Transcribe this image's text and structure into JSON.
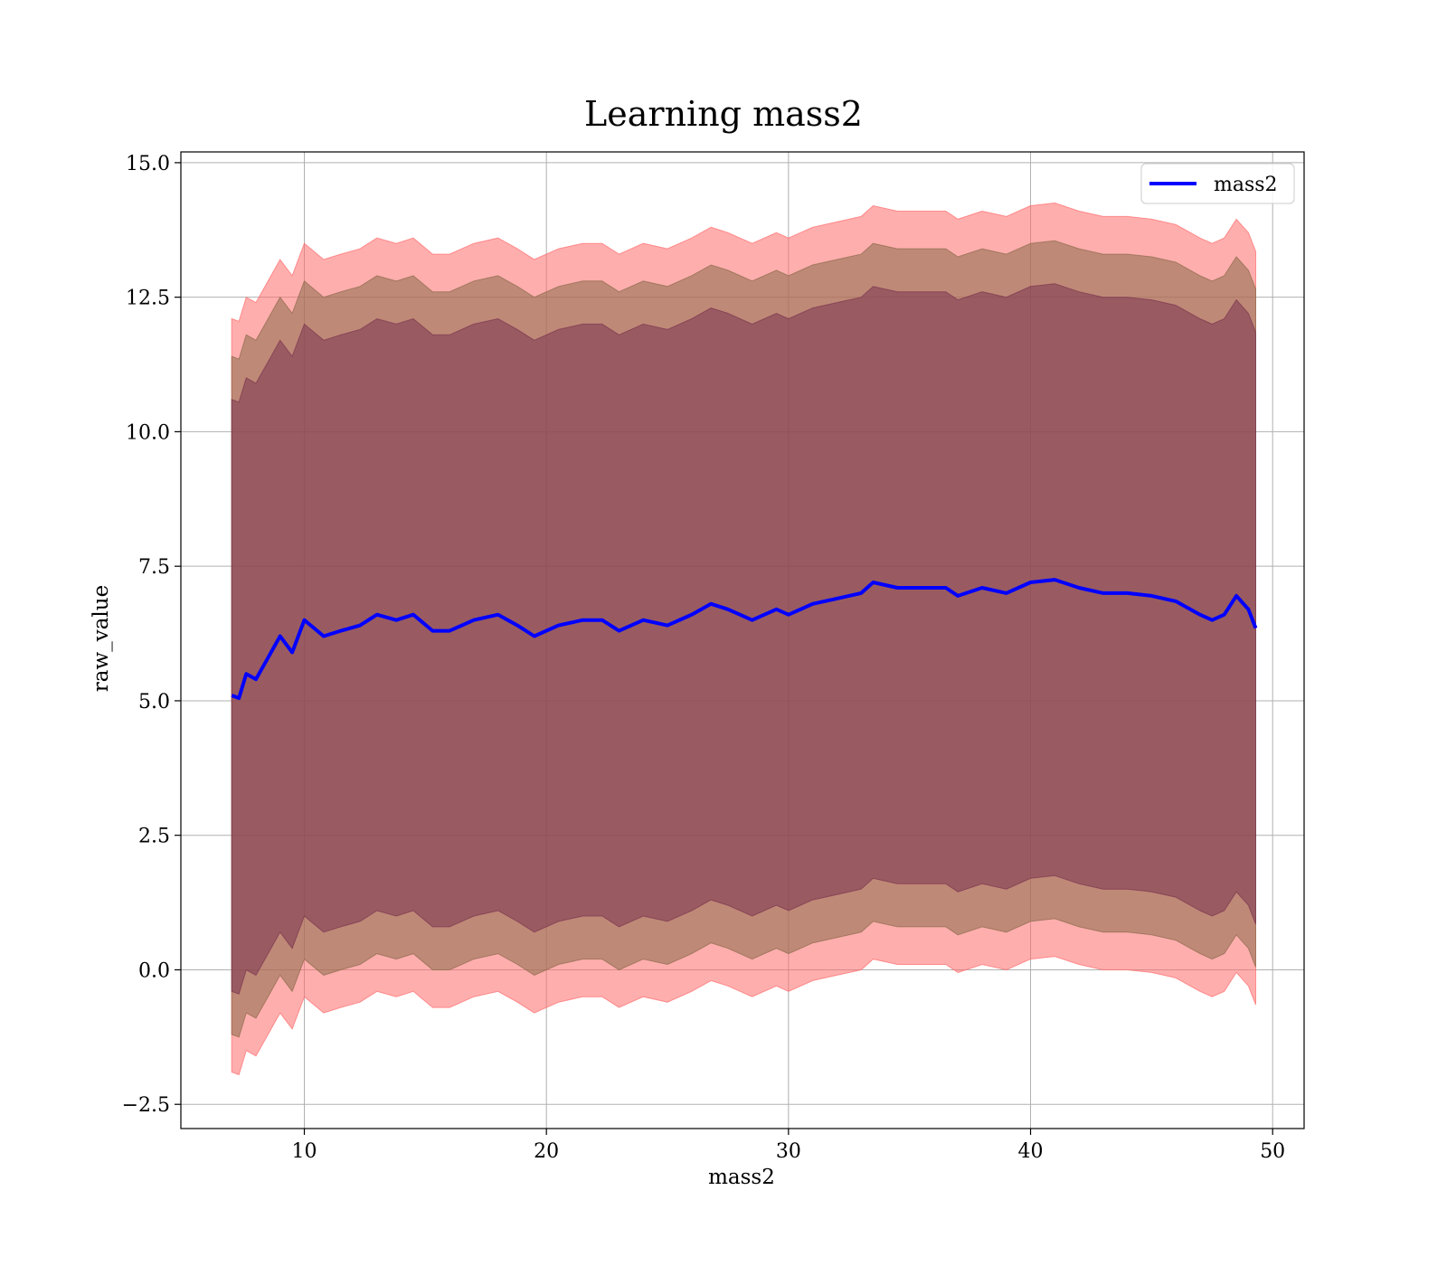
{
  "chart_data": {
    "type": "area",
    "title": "Learning mass2",
    "xlabel": "mass2",
    "ylabel": "raw_value",
    "xlim": [
      4.9,
      51.3
    ],
    "ylim": [
      -2.95,
      15.2
    ],
    "x_ticks": [
      10,
      20,
      30,
      40,
      50
    ],
    "x_tick_labels": [
      "10",
      "20",
      "30",
      "40",
      "50"
    ],
    "y_ticks": [
      -2.5,
      0.0,
      2.5,
      5.0,
      7.5,
      10.0,
      12.5,
      15.0
    ],
    "y_tick_labels": [
      "−2.5",
      "0.0",
      "2.5",
      "5.0",
      "7.5",
      "10.0",
      "12.5",
      "15.0"
    ],
    "grid": true,
    "legend": {
      "position": "top-right",
      "entries": [
        "mass2"
      ]
    },
    "series": [
      {
        "name": "mass2",
        "color": "#0000ff",
        "x": [
          7.0,
          7.3,
          7.6,
          8.0,
          8.5,
          9.0,
          9.5,
          10.0,
          10.8,
          11.5,
          12.3,
          13.0,
          13.8,
          14.5,
          15.3,
          16.0,
          17.0,
          18.0,
          18.8,
          19.5,
          20.5,
          21.5,
          22.3,
          23.0,
          24.0,
          25.0,
          26.0,
          26.8,
          27.5,
          28.5,
          29.5,
          30.0,
          31.0,
          32.0,
          33.0,
          33.5,
          34.5,
          35.5,
          36.5,
          37.0,
          38.0,
          39.0,
          40.0,
          41.0,
          42.0,
          43.0,
          44.0,
          45.0,
          46.0,
          47.0,
          47.5,
          48.0,
          48.5,
          49.0,
          49.3
        ],
        "y": [
          5.1,
          5.05,
          5.5,
          5.4,
          5.8,
          6.2,
          5.9,
          6.5,
          6.2,
          6.3,
          6.4,
          6.6,
          6.5,
          6.6,
          6.3,
          6.3,
          6.5,
          6.6,
          6.4,
          6.2,
          6.4,
          6.5,
          6.5,
          6.3,
          6.5,
          6.4,
          6.6,
          6.8,
          6.7,
          6.5,
          6.7,
          6.6,
          6.8,
          6.9,
          7.0,
          7.2,
          7.1,
          7.1,
          7.1,
          6.95,
          7.1,
          7.0,
          7.2,
          7.25,
          7.1,
          7.0,
          7.0,
          6.95,
          6.85,
          6.6,
          6.5,
          6.6,
          6.95,
          6.7,
          6.35
        ],
        "bands": [
          {
            "name": "",
            "color": "#ff6b6b",
            "offset_upper": 7.0,
            "offset_lower": 7.0
          },
          {
            "name": "",
            "color": "#8b6b4a",
            "offset_upper": 6.3,
            "offset_lower": 6.3
          },
          {
            "name": "",
            "color": "#7a3550",
            "offset_upper": 5.5,
            "offset_lower": 5.5
          }
        ]
      }
    ]
  }
}
